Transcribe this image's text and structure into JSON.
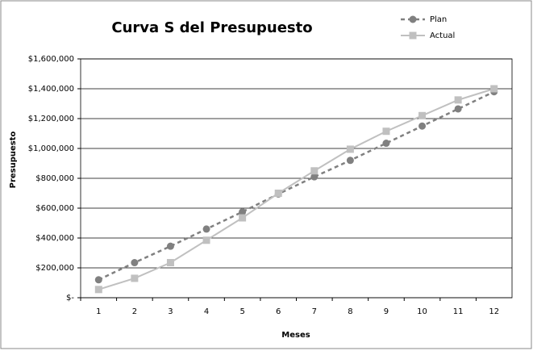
{
  "chart_data": {
    "type": "line",
    "title": "Curva S del Presupuesto",
    "x_label": "Meses",
    "y_label": "Presupuesto",
    "categories": [
      "1",
      "2",
      "3",
      "4",
      "5",
      "6",
      "7",
      "8",
      "9",
      "10",
      "11",
      "12"
    ],
    "series": [
      {
        "name": "Plan",
        "color": "#808080",
        "dashed": true,
        "marker": "circle",
        "values": [
          120000,
          235000,
          345000,
          460000,
          575000,
          695000,
          810000,
          920000,
          1035000,
          1150000,
          1265000,
          1380000
        ]
      },
      {
        "name": "Actual",
        "color": "#c0c0c0",
        "dashed": false,
        "marker": "square",
        "values": [
          55000,
          130000,
          235000,
          385000,
          535000,
          700000,
          850000,
          995000,
          1115000,
          1220000,
          1325000,
          1400000
        ]
      }
    ],
    "ylim": [
      0,
      1600000
    ],
    "yticks": [
      {
        "value": 0,
        "label": "$-"
      },
      {
        "value": 200000,
        "label": "$200,000"
      },
      {
        "value": 400000,
        "label": "$400,000"
      },
      {
        "value": 600000,
        "label": "$600,000"
      },
      {
        "value": 800000,
        "label": "$800,000"
      },
      {
        "value": 1000000,
        "label": "$1,000,000"
      },
      {
        "value": 1200000,
        "label": "$1,200,000"
      },
      {
        "value": 1400000,
        "label": "$1,400,000"
      },
      {
        "value": 1600000,
        "label": "$1,600,000"
      }
    ],
    "grid": true,
    "legend": "top-right"
  }
}
